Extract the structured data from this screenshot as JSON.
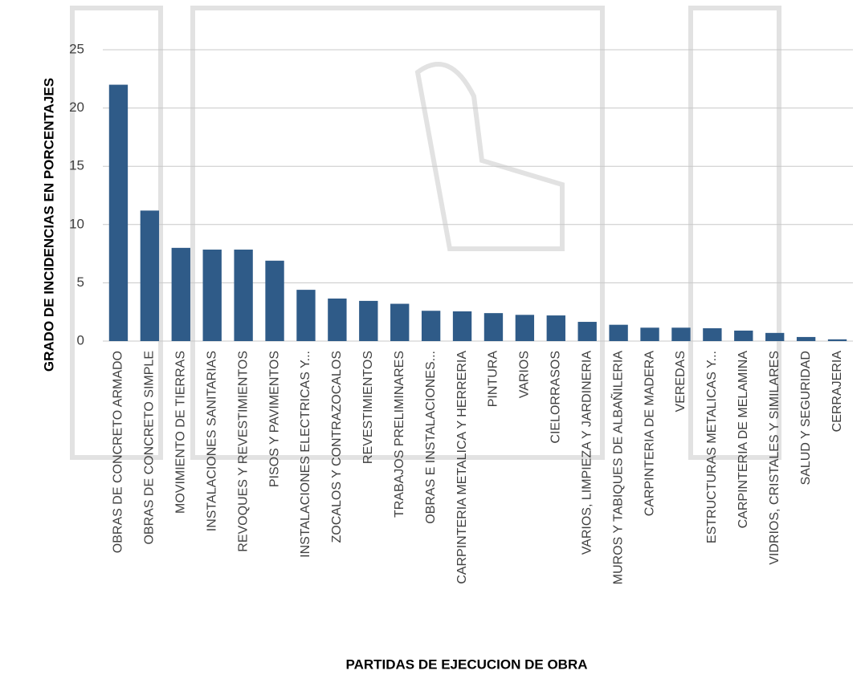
{
  "chart_data": {
    "type": "bar",
    "x_label": "PARTIDAS DE EJECUCION DE OBRA",
    "y_label": "GRADO DE INCIDENCIAS EN PORCENTAJES",
    "categories": [
      "OBRAS DE CONCRETO ARMADO",
      "OBRAS DE CONCRETO SIMPLE",
      "MOVIMIENTO DE TIERRAS",
      "INSTALACIONES SANITARIAS",
      "REVOQUES Y REVESTIMIENTOS",
      "PISOS Y PAVIMENTOS",
      "INSTALACIONES ELECTRICAS Y...",
      "ZOCALOS Y CONTRAZOCALOS",
      "REVESTIMIENTOS",
      "TRABAJOS PRELIMINARES",
      "OBRAS E INSTALACIONES...",
      "CARPINTERIA METALICA Y HERRERIA",
      "PINTURA",
      "VARIOS",
      "CIELORRASOS",
      "VARIOS, LIMPIEZA Y JARDINERIA",
      "MUROS Y TABIQUES DE ALBAÑILERIA",
      "CARPINTERIA DE MADERA",
      "VEREDAS",
      "ESTRUCTURAS METALICAS Y...",
      "CARPINTERIA DE MELAMINA",
      "VIDRIOS, CRISTALES Y SIMILARES",
      "SALUD Y SEGURIDAD",
      "CERRAJERIA"
    ],
    "values": [
      22.0,
      11.2,
      8.0,
      7.85,
      7.85,
      6.9,
      4.4,
      3.65,
      3.45,
      3.2,
      2.6,
      2.55,
      2.4,
      2.25,
      2.2,
      1.65,
      1.4,
      1.15,
      1.15,
      1.1,
      0.9,
      0.7,
      0.35,
      0.15
    ],
    "color": "#2f5b88",
    "ylim": [
      0,
      25
    ],
    "yticks": [
      0,
      5,
      10,
      15,
      20,
      25
    ],
    "grid": true
  }
}
